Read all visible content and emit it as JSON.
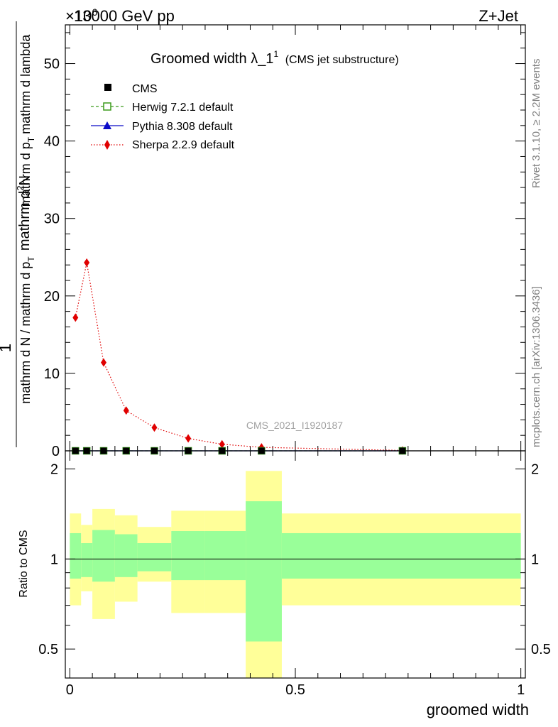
{
  "header": {
    "energy_label": "13000 GeV pp",
    "process_label": "Z+Jet",
    "exponent_label": "×10",
    "exponent_sup": "6"
  },
  "side_labels": {
    "rivet": "Rivet 3.1.10, ≥ 2.2M events",
    "mcplots": "mcplots.cern.ch [arXiv:1306.3436]"
  },
  "watermark": "CMS_2021_I1920187",
  "chart_data": [
    {
      "type": "line",
      "panel": "main",
      "title": "Groomed width",
      "title_symbol": "λ_1",
      "title_sup": "1",
      "title_suffix": "(CMS jet substructure)",
      "ylabel_line1": "mathrm d",
      "ylabel_sup1": "2",
      "ylabel_n": "N",
      "ylabel_numer": "1",
      "ylabel_denom": "mathrm d N / mathrm d p",
      "ylabel_denom_sub": "T",
      "ylabel_line2": "mathrm d p",
      "ylabel_line2_sub": "T",
      "ylabel_line2_end": "mathrm d lambda",
      "ylim": [
        0,
        55
      ],
      "xlim": [
        -0.01,
        1.01
      ],
      "yticks": [
        0,
        10,
        20,
        30,
        40,
        50
      ],
      "legend_position": "top-left",
      "grid": false,
      "series": [
        {
          "name": "CMS",
          "color": "#000000",
          "marker": "square",
          "x": [
            0.0125,
            0.0375,
            0.075,
            0.125,
            0.1875,
            0.2625,
            0.3375,
            0.425,
            0.7375
          ],
          "y": [
            0.0,
            0.0,
            0.0,
            0.0,
            0.0,
            0.0,
            0.0,
            0.0,
            0.0
          ]
        },
        {
          "name": "Herwig 7.2.1 default",
          "color": "#3a9a1a",
          "marker": "open-square",
          "linestyle": "dashed",
          "x": [
            0.0125,
            0.0375,
            0.075,
            0.125,
            0.1875,
            0.2625,
            0.3375,
            0.425,
            0.7375
          ],
          "y": [
            0.0,
            0.0,
            0.0,
            0.0,
            0.0,
            0.0,
            0.0,
            0.0,
            0.0
          ]
        },
        {
          "name": "Pythia 8.308 default",
          "color": "#0a0ac8",
          "marker": "triangle",
          "linestyle": "solid",
          "x": [
            0.0125,
            0.0375,
            0.075,
            0.125,
            0.1875,
            0.2625,
            0.3375,
            0.425,
            0.7375
          ],
          "y": [
            0.0,
            0.0,
            0.0,
            0.0,
            0.0,
            0.0,
            0.0,
            0.0,
            0.0
          ]
        },
        {
          "name": "Sherpa 2.2.9 default",
          "color": "#e00000",
          "marker": "diamond",
          "linestyle": "dotted",
          "x": [
            0.0125,
            0.0375,
            0.075,
            0.125,
            0.1875,
            0.2625,
            0.3375,
            0.425,
            0.7375
          ],
          "y": [
            17.2,
            24.3,
            11.4,
            5.2,
            3.0,
            1.6,
            0.85,
            0.45,
            0.05
          ]
        }
      ]
    },
    {
      "type": "area",
      "panel": "ratio",
      "ylabel": "Ratio to CMS",
      "xlabel": "groomed width",
      "ylim": [
        0.4,
        2.3
      ],
      "log_scale": true,
      "yticks": [
        0.5,
        1,
        2
      ],
      "xticks": [
        0,
        0.5,
        1
      ],
      "xtick_labels": [
        "0",
        "0.5",
        "1"
      ],
      "grid": false,
      "reference_line": 1,
      "bins": [
        {
          "lo": 0.0,
          "hi": 0.025,
          "inner": [
            0.86,
            1.22
          ],
          "outer": [
            0.7,
            1.42
          ]
        },
        {
          "lo": 0.025,
          "hi": 0.05,
          "inner": [
            0.87,
            1.13
          ],
          "outer": [
            0.78,
            1.3
          ]
        },
        {
          "lo": 0.05,
          "hi": 0.1,
          "inner": [
            0.84,
            1.25
          ],
          "outer": [
            0.63,
            1.47
          ]
        },
        {
          "lo": 0.1,
          "hi": 0.15,
          "inner": [
            0.87,
            1.21
          ],
          "outer": [
            0.72,
            1.4
          ]
        },
        {
          "lo": 0.15,
          "hi": 0.225,
          "inner": [
            0.91,
            1.13
          ],
          "outer": [
            0.84,
            1.28
          ]
        },
        {
          "lo": 0.225,
          "hi": 0.3,
          "inner": [
            0.85,
            1.24
          ],
          "outer": [
            0.66,
            1.45
          ]
        },
        {
          "lo": 0.3,
          "hi": 0.39,
          "inner": [
            0.85,
            1.24
          ],
          "outer": [
            0.66,
            1.45
          ]
        },
        {
          "lo": 0.39,
          "hi": 0.47,
          "inner": [
            0.53,
            1.56
          ],
          "outer": [
            0.37,
            1.97
          ]
        },
        {
          "lo": 0.47,
          "hi": 1.0,
          "inner": [
            0.86,
            1.22
          ],
          "outer": [
            0.7,
            1.42
          ]
        }
      ]
    }
  ]
}
